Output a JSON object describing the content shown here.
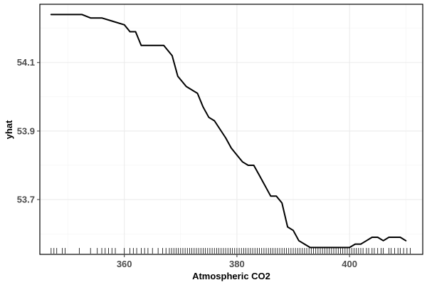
{
  "chart_data": {
    "type": "line",
    "xlabel": "Atmospheric CO2",
    "ylabel": "yhat",
    "xlim": [
      345,
      413
    ],
    "ylim": [
      53.54,
      54.27
    ],
    "x_ticks": [
      360,
      380,
      400
    ],
    "y_ticks": [
      53.7,
      53.9,
      54.1
    ],
    "x_tick_labels": [
      "360",
      "380",
      "400"
    ],
    "y_tick_labels": [
      "53.7",
      "53.9",
      "54.1"
    ],
    "grid": true,
    "legend": "none",
    "line_color": "#000000",
    "series": [
      {
        "x": [
          347,
          349.5,
          352.5,
          354,
          356,
          358,
          360,
          361,
          362,
          363,
          365,
          367,
          368.5,
          369.5,
          371,
          373,
          374,
          375,
          376,
          378,
          379,
          380,
          381,
          382,
          383,
          384,
          385,
          386,
          387,
          388,
          389,
          390,
          391,
          392,
          393,
          394,
          396,
          397,
          399,
          400,
          401,
          402,
          403,
          404,
          405,
          406,
          407,
          408,
          409,
          410
        ],
        "y": [
          54.24,
          54.24,
          54.24,
          54.23,
          54.23,
          54.22,
          54.21,
          54.19,
          54.19,
          54.15,
          54.15,
          54.15,
          54.12,
          54.06,
          54.03,
          54.01,
          53.97,
          53.94,
          53.93,
          53.88,
          53.85,
          53.83,
          53.81,
          53.8,
          53.8,
          53.77,
          53.74,
          53.71,
          53.71,
          53.69,
          53.62,
          53.61,
          53.58,
          53.57,
          53.56,
          53.56,
          53.56,
          53.56,
          53.56,
          53.56,
          53.57,
          53.57,
          53.58,
          53.59,
          53.59,
          53.58,
          53.59,
          53.59,
          53.59,
          53.58
        ]
      }
    ],
    "rug_x": [
      347,
      347.5,
      348,
      349,
      349.5,
      352,
      354,
      355.2,
      356,
      356.6,
      357.2,
      357.8,
      358.4,
      360,
      361,
      361.6,
      362.2,
      363,
      363.6,
      364.2,
      365,
      366,
      366.8,
      367.4,
      368,
      368.4,
      368.8,
      369.2,
      369.6,
      370,
      370.4,
      370.8,
      371.2,
      371.6,
      372,
      372.4,
      372.8,
      373.2,
      373.6,
      374,
      374.4,
      374.8,
      375.2,
      375.6,
      376,
      376.4,
      376.8,
      377.2,
      377.6,
      378,
      378.4,
      378.8,
      379.2,
      379.6,
      380,
      380.4,
      380.8,
      381.2,
      381.6,
      382,
      382.4,
      382.8,
      383.2,
      383.6,
      384,
      384.4,
      384.8,
      385.2,
      385.6,
      386,
      386.4,
      386.8,
      387.2,
      387.6,
      388,
      388.4,
      388.8,
      389.2,
      389.6,
      390,
      390.4,
      390.8,
      391.2,
      391.6,
      392,
      392.4,
      392.8,
      393.2,
      393.6,
      394,
      394.4,
      394.8,
      395.2,
      395.6,
      396,
      396.4,
      396.8,
      397.2,
      397.6,
      398,
      398.4,
      398.8,
      399.2,
      399.6,
      400,
      400.4,
      400.8,
      401.2,
      401.6,
      402,
      402.4,
      403,
      403.4,
      404,
      404.4,
      405,
      405.6,
      406,
      407,
      407.4,
      408,
      408.6,
      409,
      409.6,
      410.2,
      410.8
    ]
  }
}
